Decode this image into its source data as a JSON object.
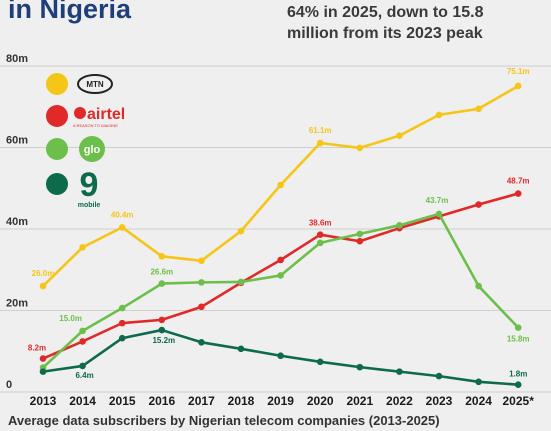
{
  "header": {
    "title": "in Nigeria",
    "subtitle_line1": "64% in 2025, down to 15.8",
    "subtitle_line2": "million from its 2023 peak"
  },
  "caption": "Average data subscribers by Nigerian telecom companies (2013-2025)",
  "legend": {
    "mtn_logo_text": "MTN",
    "airtel_logo_text": "airtel",
    "airtel_tagline": "A REASON TO IMAGINE",
    "glo_logo_text": "glo",
    "ninemobile_logo_digit": "9",
    "ninemobile_logo_text": "mobile"
  },
  "colors": {
    "mtn": "#f5c518",
    "airtel": "#e02a2a",
    "glo": "#6cbf4a",
    "ninemobile": "#0d6b4b",
    "grid": "#cfcfcf",
    "background": "#efefef"
  },
  "chart_data": {
    "type": "line",
    "title": "",
    "xlabel": "",
    "ylabel": "",
    "x": [
      "2013",
      "2014",
      "2015",
      "2016",
      "2017",
      "2018",
      "2019",
      "2020",
      "2021",
      "2022",
      "2023",
      "2024",
      "2025*"
    ],
    "yticks": [
      "0",
      "20m",
      "40m",
      "60m",
      "80m"
    ],
    "ylim": [
      0,
      80
    ],
    "grid": true,
    "series": [
      {
        "key": "mtn",
        "values": [
          26.0,
          35.5,
          40.4,
          33.3,
          32.2,
          39.5,
          50.8,
          61.1,
          59.9,
          62.9,
          68.0,
          69.5,
          75.1
        ]
      },
      {
        "key": "airtel",
        "values": [
          8.2,
          12.4,
          16.9,
          17.7,
          20.9,
          26.8,
          32.4,
          38.6,
          37.0,
          40.2,
          43.1,
          46.0,
          48.7
        ]
      },
      {
        "key": "glo",
        "values": [
          6.0,
          15.0,
          20.6,
          26.6,
          26.9,
          27.0,
          28.6,
          36.6,
          38.8,
          40.9,
          43.7,
          26.0,
          15.8
        ]
      },
      {
        "key": "ninemobile",
        "values": [
          5.0,
          6.4,
          13.2,
          15.2,
          12.2,
          10.6,
          8.9,
          7.4,
          6.1,
          5.0,
          3.9,
          2.5,
          1.8
        ]
      }
    ],
    "data_labels": [
      {
        "series": "mtn",
        "index": 0,
        "text": "26.0m"
      },
      {
        "series": "mtn",
        "index": 2,
        "text": "40.4m"
      },
      {
        "series": "mtn",
        "index": 7,
        "text": "61.1m"
      },
      {
        "series": "mtn",
        "index": 12,
        "text": "75.1m"
      },
      {
        "series": "airtel",
        "index": 0,
        "text": "8.2m"
      },
      {
        "series": "airtel",
        "index": 7,
        "text": "38.6m"
      },
      {
        "series": "airtel",
        "index": 12,
        "text": "48.7m"
      },
      {
        "series": "glo",
        "index": 1,
        "text": "15.0m"
      },
      {
        "series": "glo",
        "index": 3,
        "text": "26.6m"
      },
      {
        "series": "glo",
        "index": 10,
        "text": "43.7m"
      },
      {
        "series": "glo",
        "index": 12,
        "text": "15.8m"
      },
      {
        "series": "ninemobile",
        "index": 1,
        "text": "6.4m"
      },
      {
        "series": "ninemobile",
        "index": 3,
        "text": "15.2m"
      },
      {
        "series": "ninemobile",
        "index": 12,
        "text": "1.8m"
      }
    ]
  }
}
